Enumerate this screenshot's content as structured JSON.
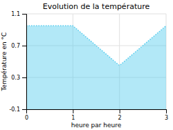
{
  "chart_data": {
    "type": "area",
    "title": "Evolution de la température",
    "xlabel": "heure par heure",
    "ylabel": "Température en °C",
    "x": [
      0,
      1,
      2,
      3
    ],
    "values": [
      0.95,
      0.95,
      0.45,
      0.95
    ],
    "xlim": [
      0,
      3
    ],
    "ylim": [
      -0.1,
      1.1
    ],
    "xticks": [
      0,
      1,
      2,
      3
    ],
    "yticks": [
      -0.1,
      0.3,
      0.7,
      1.1
    ],
    "color": "#55ccee",
    "line_style": "dotted",
    "grid": true
  }
}
